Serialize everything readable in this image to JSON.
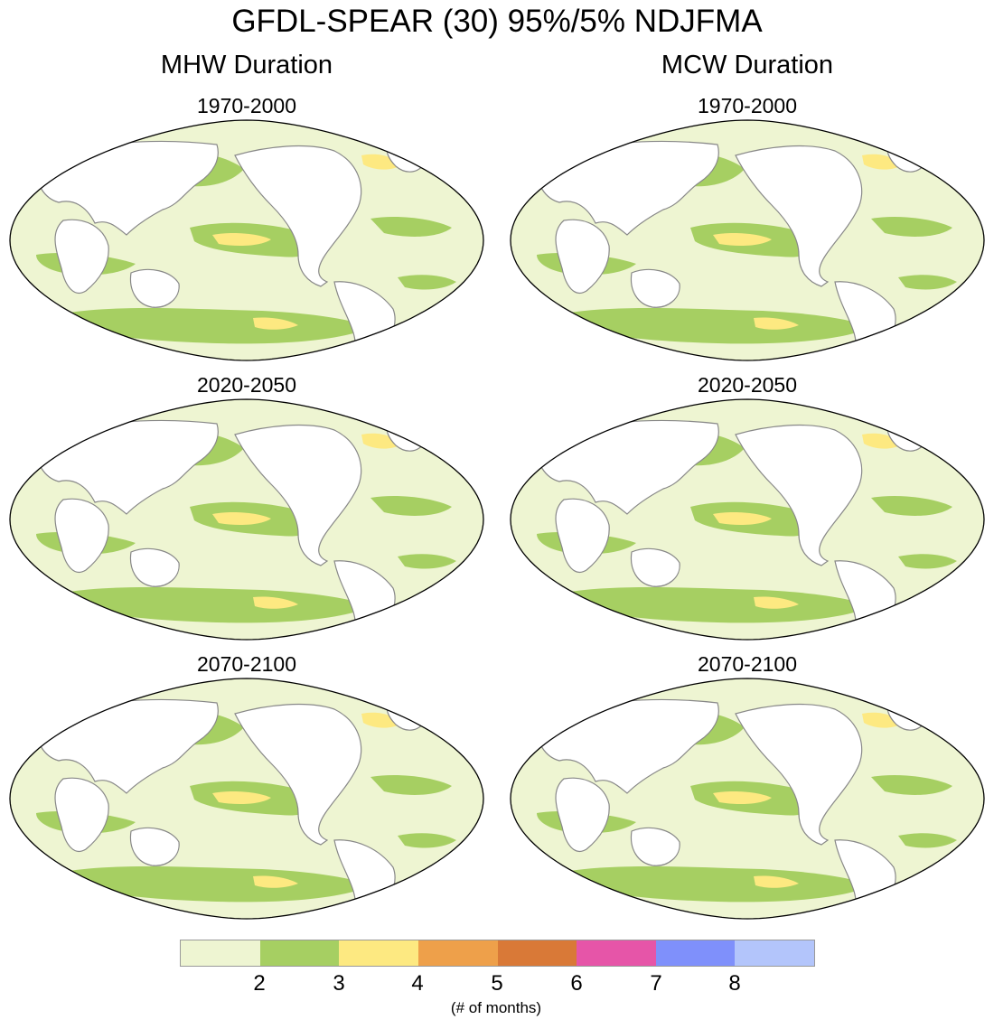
{
  "title": "GFDL-SPEAR (30) 95%/5% NDJFMA",
  "columns": [
    {
      "title": "MHW Duration",
      "periods": [
        "1970-2000",
        "2020-2050",
        "2070-2100"
      ]
    },
    {
      "title": "MCW Duration",
      "periods": [
        "1970-2000",
        "2020-2050",
        "2070-2100"
      ]
    }
  ],
  "colorbar": {
    "colors": [
      "#eef5d2",
      "#a6cf62",
      "#fde981",
      "#eea04a",
      "#d97937",
      "#e655a8",
      "#7f90fb",
      "#b3c5fb"
    ],
    "tick_labels": [
      "2",
      "3",
      "4",
      "5",
      "6",
      "7",
      "8"
    ],
    "units_label": "(# of months)"
  }
}
